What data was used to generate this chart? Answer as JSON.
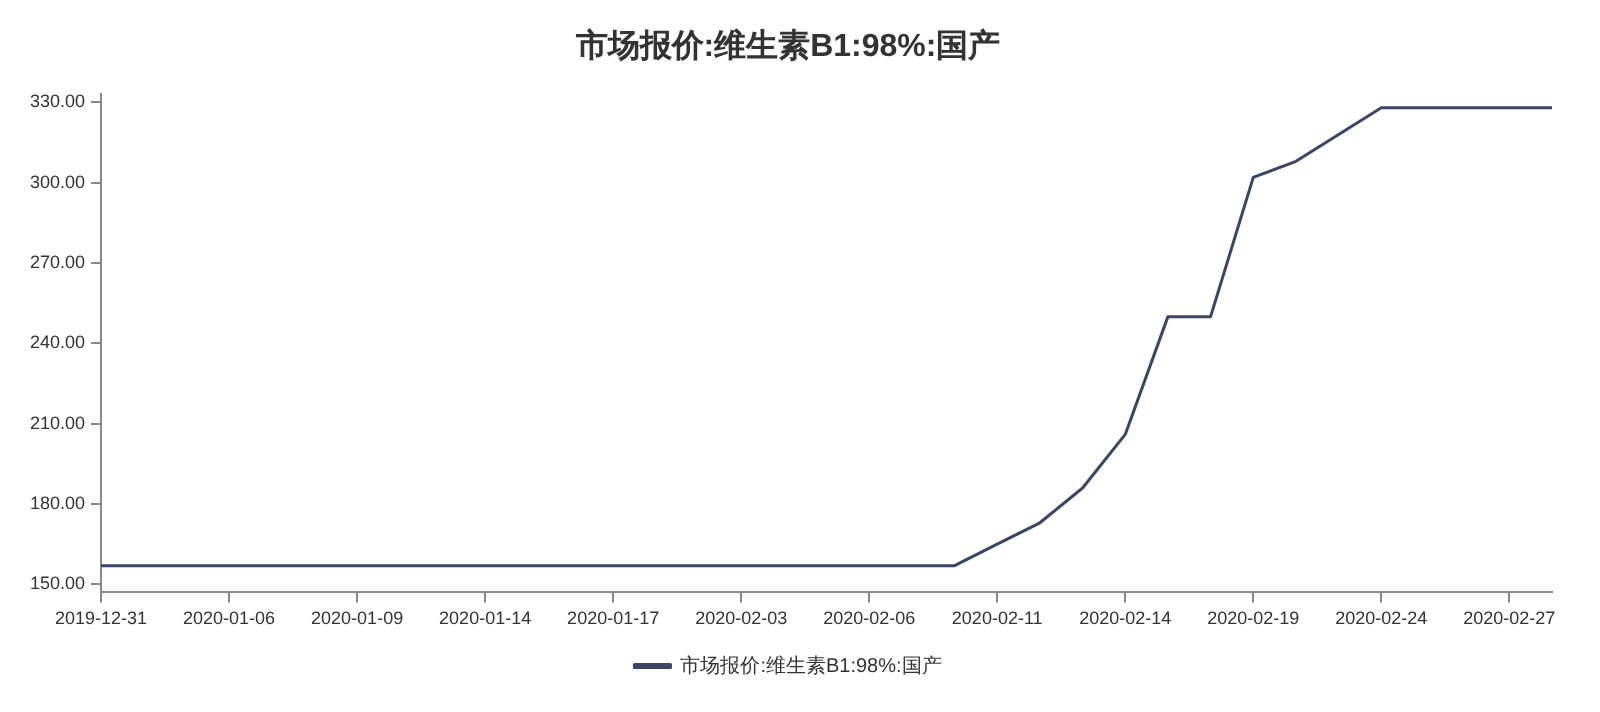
{
  "chart_data": {
    "type": "line",
    "title": "市场报价:维生素B1:98%:国产",
    "categories": [
      "2019-12-31",
      null,
      null,
      "2020-01-06",
      null,
      null,
      "2020-01-09",
      null,
      null,
      "2020-01-14",
      null,
      null,
      "2020-01-17",
      null,
      null,
      "2020-02-03",
      null,
      null,
      "2020-02-06",
      null,
      null,
      "2020-02-11",
      null,
      null,
      "2020-02-14",
      null,
      null,
      "2020-02-19",
      null,
      null,
      "2020-02-24",
      null,
      null,
      "2020-02-27",
      null
    ],
    "series": [
      {
        "name": "市场报价:维生素B1:98%:国产",
        "color": "#3d4466",
        "values": [
          157,
          157,
          157,
          157,
          157,
          157,
          157,
          157,
          157,
          157,
          157,
          157,
          157,
          157,
          157,
          157,
          157,
          157,
          157,
          157,
          157,
          165,
          173,
          186,
          206,
          250,
          250,
          302,
          308,
          318,
          328,
          328,
          328,
          328,
          328
        ]
      }
    ],
    "ylim": [
      147,
      333
    ],
    "yticks": [
      {
        "value": 150,
        "label": "150.00"
      },
      {
        "value": 180,
        "label": "180.00"
      },
      {
        "value": 210,
        "label": "210.00"
      },
      {
        "value": 240,
        "label": "240.00"
      },
      {
        "value": 270,
        "label": "270.00"
      },
      {
        "value": 300,
        "label": "300.00"
      },
      {
        "value": 330,
        "label": "330.00"
      }
    ],
    "grid": false,
    "legend": "bottom",
    "marker": "none",
    "line_style": "solid"
  }
}
